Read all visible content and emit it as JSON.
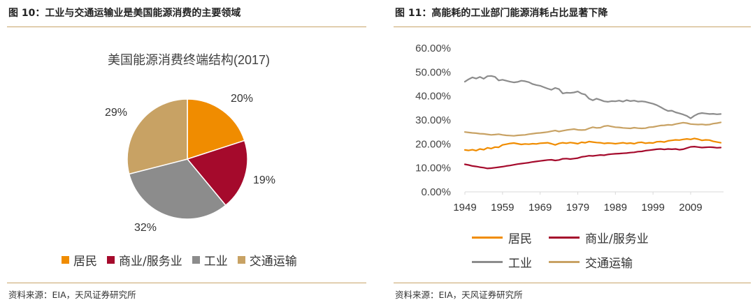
{
  "left": {
    "figure_title": "图 10：工业与交通运输业是美国能源消费的主要领域",
    "source": "资料来源：EIA，天风证券研究所"
  },
  "right": {
    "figure_title": "图 11：高能耗的工业部门能源消耗占比显著下降",
    "source": "资料来源：EIA，天风证券研究所"
  },
  "chart_data": [
    {
      "type": "pie",
      "title": "美国能源消费终端结构(2017)",
      "categories": [
        "居民",
        "商业/服务业",
        "工业",
        "交通运输"
      ],
      "values": [
        20,
        19,
        32,
        29
      ],
      "labels": [
        "20%",
        "19%",
        "32%",
        "29%"
      ],
      "colors": [
        "#f08c00",
        "#a50a2c",
        "#8c8c8c",
        "#c8a264"
      ],
      "legend": "bottom"
    },
    {
      "type": "line",
      "title": "",
      "xlabel": "",
      "ylabel": "",
      "x": [
        1949,
        1950,
        1951,
        1952,
        1953,
        1954,
        1955,
        1956,
        1957,
        1958,
        1959,
        1960,
        1961,
        1962,
        1963,
        1964,
        1965,
        1966,
        1967,
        1968,
        1969,
        1970,
        1971,
        1972,
        1973,
        1974,
        1975,
        1976,
        1977,
        1978,
        1979,
        1980,
        1981,
        1982,
        1983,
        1984,
        1985,
        1986,
        1987,
        1988,
        1989,
        1990,
        1991,
        1992,
        1993,
        1994,
        1995,
        1996,
        1997,
        1998,
        1999,
        2000,
        2001,
        2002,
        2003,
        2004,
        2005,
        2006,
        2007,
        2008,
        2009,
        2010,
        2011,
        2012,
        2013,
        2014,
        2015,
        2016,
        2017
      ],
      "x_ticks": [
        "1949",
        "1959",
        "1969",
        "1979",
        "1989",
        "1999",
        "2009"
      ],
      "y_ticks": [
        "0.00%",
        "10.00%",
        "20.00%",
        "30.00%",
        "40.00%",
        "50.00%",
        "60.00%"
      ],
      "ylim": [
        0,
        60
      ],
      "legend": "bottom",
      "series": [
        {
          "name": "居民",
          "color": "#f08c00",
          "values": [
            17.5,
            17.3,
            17.6,
            17.2,
            17.9,
            17.6,
            18.4,
            18.1,
            18.7,
            18.6,
            19.6,
            19.9,
            20.2,
            20.4,
            20.1,
            19.8,
            20.0,
            19.9,
            20.1,
            20.0,
            20.3,
            20.4,
            20.5,
            20.1,
            19.6,
            20.2,
            20.5,
            20.3,
            20.6,
            20.4,
            20.1,
            20.7,
            20.5,
            21.0,
            20.8,
            20.6,
            20.5,
            20.2,
            20.4,
            20.3,
            20.1,
            20.3,
            20.5,
            20.2,
            20.4,
            20.1,
            20.6,
            20.7,
            20.3,
            20.5,
            20.4,
            20.9,
            21.0,
            20.8,
            21.3,
            21.5,
            21.7,
            21.6,
            21.9,
            22.1,
            21.9,
            22.3,
            22.0,
            21.5,
            21.7,
            21.6,
            21.1,
            20.8,
            20.5
          ]
        },
        {
          "name": "商业/服务业",
          "color": "#a50a2c",
          "values": [
            11.5,
            11.2,
            10.8,
            10.6,
            10.3,
            10.1,
            9.8,
            9.9,
            10.1,
            10.3,
            10.5,
            10.8,
            11.0,
            11.3,
            11.6,
            11.8,
            12.0,
            12.2,
            12.5,
            12.7,
            12.9,
            13.1,
            13.3,
            13.4,
            13.1,
            13.3,
            13.8,
            13.9,
            13.7,
            13.9,
            14.1,
            14.6,
            14.8,
            15.1,
            15.0,
            15.2,
            15.4,
            15.3,
            15.6,
            15.8,
            15.9,
            16.0,
            16.1,
            16.2,
            16.4,
            16.5,
            16.8,
            16.9,
            17.2,
            17.4,
            17.6,
            17.8,
            17.9,
            17.7,
            17.9,
            17.8,
            17.9,
            17.6,
            17.8,
            18.3,
            18.8,
            18.9,
            18.7,
            18.5,
            18.6,
            18.7,
            18.6,
            18.4,
            18.5
          ]
        },
        {
          "name": "工业",
          "color": "#8c8c8c",
          "values": [
            46.0,
            47.0,
            47.8,
            47.3,
            48.0,
            47.2,
            48.3,
            48.4,
            48.0,
            46.5,
            46.8,
            46.4,
            46.0,
            45.7,
            45.9,
            46.4,
            46.2,
            45.8,
            45.0,
            44.6,
            44.3,
            43.7,
            43.1,
            42.6,
            43.4,
            42.9,
            41.1,
            41.4,
            41.3,
            41.5,
            41.9,
            41.0,
            40.6,
            38.9,
            38.2,
            38.9,
            38.4,
            37.8,
            37.6,
            37.9,
            37.8,
            38.1,
            37.7,
            38.3,
            37.9,
            38.1,
            37.7,
            37.8,
            37.6,
            37.2,
            36.8,
            36.2,
            35.4,
            34.5,
            33.8,
            33.9,
            33.2,
            32.8,
            32.3,
            31.7,
            30.7,
            31.8,
            32.6,
            32.9,
            32.7,
            32.5,
            32.6,
            32.4,
            32.5
          ]
        },
        {
          "name": "交通运输",
          "color": "#c8a264",
          "values": [
            25.0,
            24.8,
            24.6,
            24.5,
            24.3,
            24.2,
            24.0,
            23.8,
            23.9,
            24.1,
            23.8,
            23.6,
            23.5,
            23.4,
            23.6,
            23.7,
            23.8,
            24.1,
            24.3,
            24.5,
            24.6,
            24.8,
            25.0,
            25.3,
            25.6,
            25.2,
            25.5,
            25.8,
            26.0,
            26.2,
            25.9,
            25.8,
            25.9,
            26.5,
            27.0,
            26.7,
            26.8,
            27.4,
            27.6,
            27.3,
            27.0,
            26.9,
            26.7,
            26.6,
            26.5,
            26.8,
            26.6,
            26.5,
            26.6,
            27.0,
            27.1,
            27.4,
            27.7,
            27.8,
            28.0,
            27.9,
            28.3,
            28.6,
            28.9,
            28.7,
            28.3,
            28.2,
            28.1,
            28.2,
            28.0,
            28.1,
            28.5,
            28.7,
            29.0
          ]
        }
      ]
    }
  ]
}
